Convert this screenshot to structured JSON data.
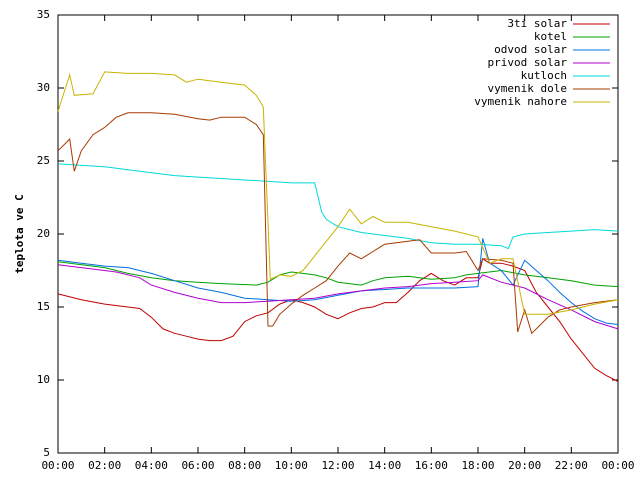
{
  "chart_data": {
    "type": "line",
    "y_label": "teplota ve C",
    "xlim": [
      0,
      24
    ],
    "ylim": [
      5,
      35
    ],
    "yticks": [
      5,
      10,
      15,
      20,
      25,
      30,
      35
    ],
    "xticks": [
      {
        "value": 0,
        "label": "00:00"
      },
      {
        "value": 2,
        "label": "02:00"
      },
      {
        "value": 4,
        "label": "04:00"
      },
      {
        "value": 6,
        "label": "06:00"
      },
      {
        "value": 8,
        "label": "08:00"
      },
      {
        "value": 10,
        "label": "10:00"
      },
      {
        "value": 12,
        "label": "12:00"
      },
      {
        "value": 14,
        "label": "14:00"
      },
      {
        "value": 16,
        "label": "16:00"
      },
      {
        "value": 18,
        "label": "18:00"
      },
      {
        "value": 20,
        "label": "20:00"
      },
      {
        "value": 22,
        "label": "22:00"
      },
      {
        "value": 24,
        "label": "00:00"
      }
    ],
    "legend": "top-right",
    "series": [
      {
        "name": "3ti solar",
        "color": "#c00000",
        "x": [
          0,
          1,
          2,
          3,
          3.5,
          4,
          4.5,
          5,
          5.5,
          6,
          6.5,
          7,
          7.5,
          8,
          8.5,
          9,
          9.5,
          10,
          10.5,
          11,
          11.5,
          12,
          12.5,
          13,
          13.5,
          14,
          14.5,
          15,
          15.5,
          16,
          16.5,
          17,
          17.5,
          18,
          18.2,
          18.5,
          19,
          19.5,
          20,
          20.5,
          21,
          21.5,
          22,
          22.5,
          23,
          23.5,
          24
        ],
        "values": [
          15.9,
          15.5,
          15.2,
          15.0,
          14.9,
          14.3,
          13.5,
          13.2,
          13.0,
          12.8,
          12.7,
          12.7,
          13.0,
          14.0,
          14.4,
          14.6,
          15.2,
          15.5,
          15.3,
          15.0,
          14.5,
          14.2,
          14.6,
          14.9,
          15.0,
          15.3,
          15.3,
          16.0,
          16.8,
          17.3,
          16.8,
          16.5,
          17.0,
          17.0,
          18.3,
          18.0,
          18.0,
          17.8,
          17.5,
          16.0,
          15.0,
          14.0,
          12.8,
          11.8,
          10.8,
          10.3,
          9.9
        ]
      },
      {
        "name": "kotel",
        "color": "#00a000",
        "x": [
          0,
          2,
          3,
          4,
          5,
          6,
          7,
          8.5,
          9,
          9.5,
          10,
          10.5,
          11,
          11.5,
          12,
          13,
          13.5,
          14,
          15,
          16,
          17,
          17.5,
          18,
          19,
          20,
          21,
          22,
          23,
          24
        ],
        "values": [
          18.1,
          17.7,
          17.3,
          17.0,
          16.8,
          16.7,
          16.6,
          16.5,
          16.7,
          17.2,
          17.4,
          17.3,
          17.2,
          17.0,
          16.7,
          16.5,
          16.8,
          17.0,
          17.1,
          16.9,
          17.0,
          17.2,
          17.3,
          17.5,
          17.2,
          17.0,
          16.8,
          16.5,
          16.4
        ]
      },
      {
        "name": "odvod solar",
        "color": "#0070e0",
        "x": [
          0,
          1,
          2,
          3,
          4,
          5,
          6,
          7,
          8,
          9,
          10,
          11,
          12,
          13,
          14,
          15,
          16,
          17,
          18,
          18.2,
          18.5,
          19,
          19.5,
          20,
          20.5,
          21,
          21.5,
          22,
          22.5,
          23,
          23.5,
          24
        ],
        "values": [
          18.2,
          18.0,
          17.8,
          17.7,
          17.3,
          16.8,
          16.3,
          16.0,
          15.6,
          15.5,
          15.4,
          15.5,
          15.8,
          16.1,
          16.2,
          16.3,
          16.3,
          16.3,
          16.4,
          19.7,
          18.0,
          17.5,
          16.5,
          18.2,
          17.5,
          16.8,
          16.0,
          15.3,
          14.7,
          14.2,
          13.9,
          13.8
        ]
      },
      {
        "name": "privod solar",
        "color": "#b000d0",
        "x": [
          0,
          1,
          2.5,
          3.5,
          4,
          5,
          6,
          7,
          8,
          9,
          10,
          11,
          12,
          13,
          14,
          15,
          16,
          17,
          18,
          18.2,
          19,
          20,
          21,
          22,
          23,
          24
        ],
        "values": [
          17.9,
          17.7,
          17.4,
          17.0,
          16.5,
          16.0,
          15.6,
          15.3,
          15.3,
          15.4,
          15.5,
          15.6,
          15.9,
          16.1,
          16.3,
          16.4,
          16.6,
          16.7,
          16.8,
          17.2,
          16.7,
          16.3,
          15.5,
          14.8,
          14.0,
          13.5
        ]
      },
      {
        "name": "kutloch",
        "color": "#00d8d8",
        "x": [
          0,
          2,
          3,
          4,
          5,
          6,
          7,
          8,
          9,
          10,
          11,
          11.3,
          11.5,
          12,
          13,
          14,
          15,
          16,
          17,
          18,
          19,
          19.3,
          19.5,
          20,
          21,
          22,
          23,
          24
        ],
        "values": [
          24.8,
          24.6,
          24.4,
          24.2,
          24.0,
          23.9,
          23.8,
          23.7,
          23.6,
          23.5,
          23.5,
          21.5,
          21.0,
          20.5,
          20.1,
          19.9,
          19.7,
          19.4,
          19.3,
          19.3,
          19.2,
          19.0,
          19.8,
          20.0,
          20.1,
          20.2,
          20.3,
          20.2
        ]
      },
      {
        "name": "vymenik dole",
        "color": "#a83800",
        "x": [
          0,
          0.5,
          0.7,
          1,
          1.5,
          2,
          2.5,
          3,
          4,
          5,
          6,
          6.5,
          7,
          8,
          8.5,
          8.8,
          9,
          9.2,
          9.5,
          10,
          10.5,
          11,
          11.5,
          12,
          12.5,
          13,
          13.5,
          14,
          15,
          15.5,
          16,
          17,
          17.5,
          18,
          18.2,
          19,
          19.5,
          19.7,
          20,
          20.3,
          20.5,
          21,
          21.5,
          22,
          23,
          24
        ],
        "values": [
          25.7,
          26.5,
          24.3,
          25.7,
          26.8,
          27.3,
          28.0,
          28.3,
          28.3,
          28.2,
          27.9,
          27.8,
          28.0,
          28.0,
          27.5,
          26.8,
          13.7,
          13.7,
          14.5,
          15.2,
          15.8,
          16.3,
          16.8,
          17.8,
          18.7,
          18.3,
          18.8,
          19.3,
          19.5,
          19.6,
          18.7,
          18.7,
          18.8,
          17.5,
          18.3,
          18.2,
          18.0,
          13.3,
          14.8,
          13.2,
          13.5,
          14.3,
          14.8,
          15.0,
          15.3,
          15.5
        ]
      },
      {
        "name": "vymenik nahore",
        "color": "#c8b400",
        "x": [
          0,
          0.5,
          0.7,
          1.5,
          2,
          3,
          4,
          5,
          5.5,
          6,
          7,
          8,
          8.5,
          8.8,
          9.1,
          9.5,
          10,
          10.5,
          11,
          11.5,
          12,
          12.5,
          13,
          13.5,
          14,
          15,
          16,
          17,
          18,
          18.5,
          19,
          19.5,
          20,
          21,
          22,
          23,
          24
        ],
        "values": [
          28.4,
          30.9,
          29.5,
          29.6,
          31.1,
          31.0,
          31.0,
          30.9,
          30.4,
          30.6,
          30.4,
          30.2,
          29.5,
          28.7,
          16.9,
          17.2,
          17.1,
          17.5,
          18.5,
          19.5,
          20.5,
          21.7,
          20.7,
          21.2,
          20.8,
          20.8,
          20.5,
          20.2,
          19.8,
          18.0,
          18.3,
          18.3,
          14.5,
          14.5,
          14.8,
          15.2,
          15.5
        ]
      }
    ]
  }
}
